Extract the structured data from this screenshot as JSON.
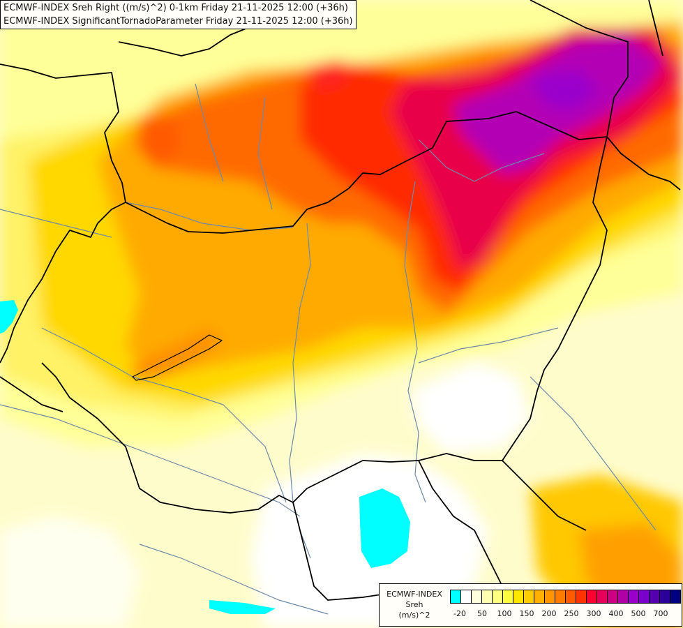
{
  "title": {
    "line1": "ECMWF-INDEX Sreh Right ((m/s)^2) 0-1km Friday 21-11-2025 12:00 (+36h)",
    "line2": "ECMWF-INDEX SignificantTornadoParameter Friday 21-11-2025 12:00 (+36h)"
  },
  "legend": {
    "line1": "ECMWF-INDEX",
    "line2": "Sreh",
    "line3": "(m/s)^2",
    "ticks": [
      "-20",
      "50",
      "100",
      "150",
      "200",
      "250",
      "300",
      "400",
      "500",
      "700"
    ],
    "colors": [
      "#00ffff",
      "#ffffff",
      "#ffffdd",
      "#ffffb0",
      "#ffff80",
      "#ffff40",
      "#ffe600",
      "#ffcc00",
      "#ffb000",
      "#ff9600",
      "#ff7a00",
      "#ff5a00",
      "#ff3300",
      "#ff0033",
      "#e6005a",
      "#cc0080",
      "#b000a8",
      "#9900cc",
      "#7a00cc",
      "#5500b0",
      "#2a0099",
      "#000080"
    ]
  },
  "colors": {
    "water": "#00ffff",
    "border": "#000000",
    "river": "#6e8aa8",
    "background": "#fffde0"
  }
}
